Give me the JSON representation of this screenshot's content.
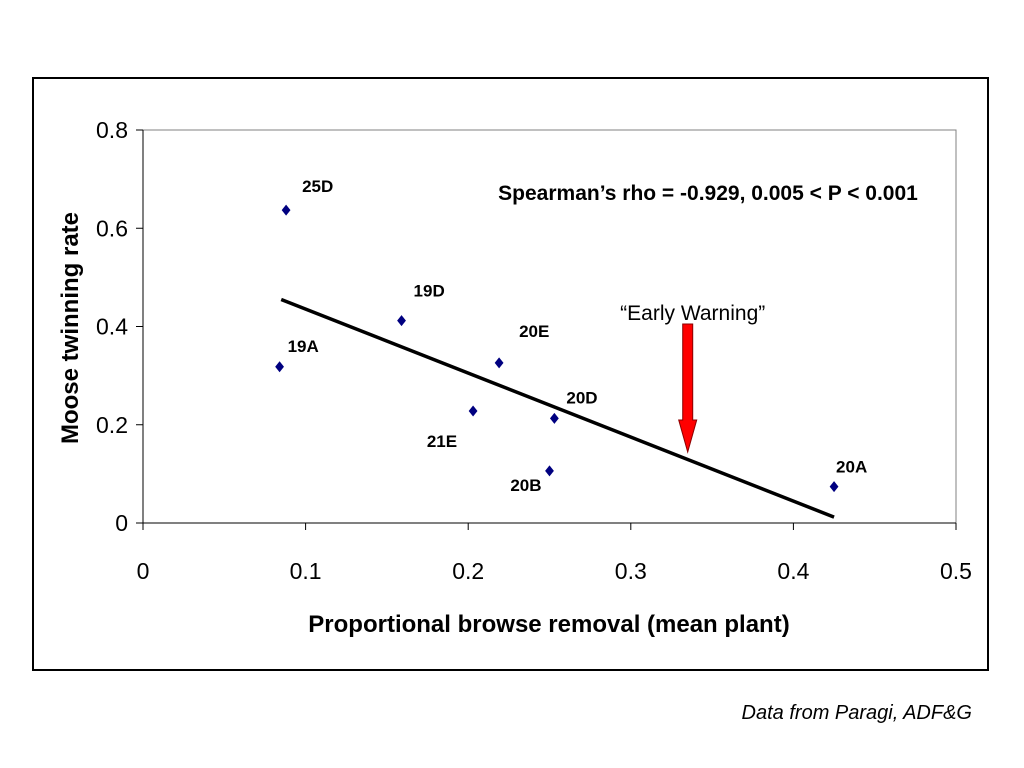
{
  "chart_data": {
    "type": "scatter",
    "xlabel": "Proportional browse removal (mean plant)",
    "ylabel": "Moose twinning rate",
    "xlim": [
      0,
      0.5
    ],
    "ylim": [
      0,
      0.8
    ],
    "x_ticks": [
      0,
      0.1,
      0.2,
      0.3,
      0.4,
      0.5
    ],
    "x_tick_labels": [
      "0",
      "0.1",
      "0.2",
      "0.3",
      "0.4",
      "0.5"
    ],
    "y_ticks": [
      0,
      0.2,
      0.4,
      0.6,
      0.8
    ],
    "y_tick_labels": [
      "0",
      "0.2",
      "0.4",
      "0.6",
      "0.8"
    ],
    "grid": false,
    "marker_color": "#000080",
    "points": [
      {
        "label": "25D",
        "x": 0.088,
        "y": 0.637
      },
      {
        "label": "19A",
        "x": 0.084,
        "y": 0.318
      },
      {
        "label": "19D",
        "x": 0.159,
        "y": 0.412
      },
      {
        "label": "20E",
        "x": 0.219,
        "y": 0.326
      },
      {
        "label": "21E",
        "x": 0.203,
        "y": 0.228
      },
      {
        "label": "20D",
        "x": 0.253,
        "y": 0.213
      },
      {
        "label": "20B",
        "x": 0.25,
        "y": 0.106
      },
      {
        "label": "20A",
        "x": 0.425,
        "y": 0.074
      }
    ],
    "trendline": {
      "x": [
        0.085,
        0.425
      ],
      "y": [
        0.455,
        0.012
      ]
    },
    "annotations": {
      "statistic": "Spearman’s rho = -0.929, 0.005 < P < 0.001",
      "early_warning": {
        "text": "“Early Warning”",
        "x": 0.335,
        "color": "#ff0000"
      }
    }
  },
  "source_note": "Data from Paragi, ADF&G"
}
